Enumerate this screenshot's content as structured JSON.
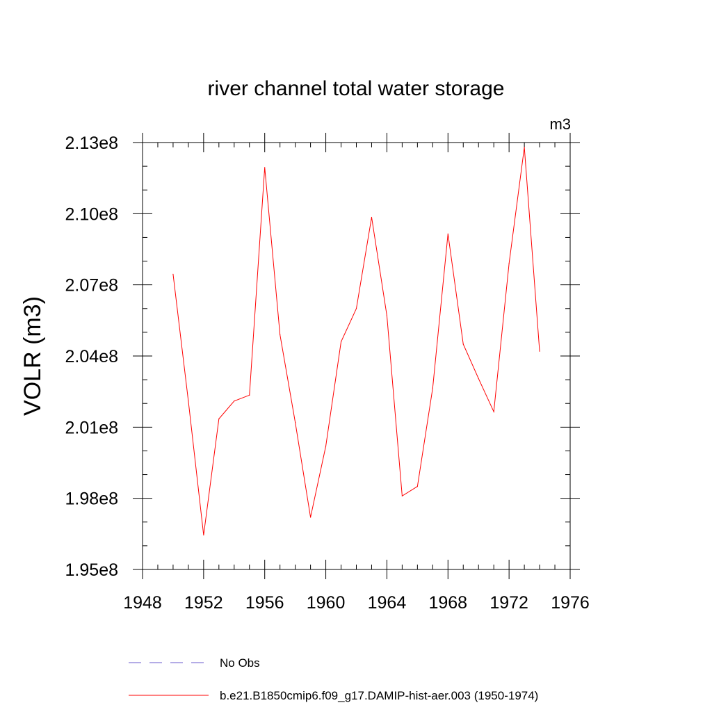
{
  "chart_data": {
    "type": "line",
    "title": "river channel total water storage",
    "units_label": "m3",
    "ylabel": "VOLR  (m3)",
    "xlabel": "",
    "xlim": [
      1948,
      1976
    ],
    "ylim": [
      195000000,
      213000000
    ],
    "x_ticks": [
      1948,
      1952,
      1956,
      1960,
      1964,
      1968,
      1972,
      1976
    ],
    "x_tick_labels": [
      "1948",
      "1952",
      "1956",
      "1960",
      "1964",
      "1968",
      "1972",
      "1976"
    ],
    "y_ticks": [
      195000000,
      198000000,
      201000000,
      204000000,
      207000000,
      210000000,
      213000000
    ],
    "y_tick_labels": [
      "1.95e8",
      "1.98e8",
      "2.01e8",
      "2.04e8",
      "2.07e8",
      "2.10e8",
      "2.13e8"
    ],
    "legend_position": "bottom",
    "legend": [
      {
        "label": "No Obs",
        "color": "#6a5acd",
        "style": "dashed"
      },
      {
        "label": "b.e21.B1850cmip6.f09_g17.DAMIP-hist-aer.003 (1950-1974)",
        "color": "#ff0000",
        "style": "solid"
      }
    ],
    "series": [
      {
        "name": "b.e21.B1850cmip6.f09_g17.DAMIP-hist-aer.003 (1950-1974)",
        "color": "#ff0000",
        "x": [
          1950,
          1951,
          1952,
          1953,
          1954,
          1955,
          1956,
          1957,
          1958,
          1959,
          1960,
          1961,
          1962,
          1963,
          1964,
          1965,
          1966,
          1967,
          1968,
          1969,
          1970,
          1971,
          1972,
          1973,
          1974
        ],
        "y": [
          207450000,
          202100000,
          196450000,
          201350000,
          202100000,
          202350000,
          211950000,
          204900000,
          201200000,
          197200000,
          200200000,
          204600000,
          206000000,
          209850000,
          205700000,
          198100000,
          198500000,
          202650000,
          209150000,
          204500000,
          203050000,
          201650000,
          207900000,
          212800000,
          204200000
        ]
      }
    ]
  }
}
